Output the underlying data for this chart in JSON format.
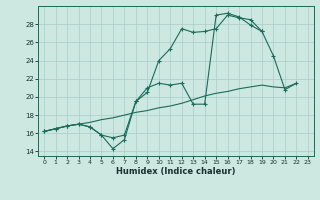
{
  "xlabel": "Humidex (Indice chaleur)",
  "bg_color": "#cce8e0",
  "grid_color": "#aacccc",
  "line_color": "#1a6b5a",
  "xlim": [
    -0.5,
    23.5
  ],
  "ylim": [
    13.5,
    30.0
  ],
  "xticks": [
    0,
    1,
    2,
    3,
    4,
    5,
    6,
    7,
    8,
    9,
    10,
    11,
    12,
    13,
    14,
    15,
    16,
    17,
    18,
    19,
    20,
    21,
    22,
    23
  ],
  "yticks": [
    14,
    16,
    18,
    20,
    22,
    24,
    26,
    28
  ],
  "series1_x": [
    0,
    1,
    2,
    3,
    4,
    5,
    6,
    7,
    8,
    9,
    10,
    11,
    12,
    13,
    14,
    15,
    16,
    17,
    18,
    19,
    20,
    21,
    22,
    23
  ],
  "series1_y": [
    16.2,
    16.5,
    16.8,
    17.0,
    16.7,
    15.8,
    14.3,
    15.3,
    19.5,
    21.0,
    21.5,
    21.3,
    21.5,
    19.2,
    19.2,
    29.0,
    29.2,
    28.8,
    27.9,
    27.2,
    24.5,
    20.8,
    21.5,
    null
  ],
  "series2_x": [
    0,
    1,
    2,
    3,
    4,
    5,
    6,
    7,
    8,
    9,
    10,
    11,
    12,
    13,
    14,
    15,
    16,
    17,
    18,
    19,
    20,
    21,
    22,
    23
  ],
  "series2_y": [
    16.2,
    16.5,
    16.8,
    17.0,
    16.7,
    15.8,
    15.5,
    15.8,
    19.5,
    20.5,
    24.0,
    25.3,
    27.5,
    27.1,
    27.2,
    27.5,
    29.0,
    28.7,
    28.5,
    27.2,
    null,
    null,
    null,
    null
  ],
  "series3_x": [
    0,
    1,
    2,
    3,
    4,
    5,
    6,
    7,
    8,
    9,
    10,
    11,
    12,
    13,
    14,
    15,
    16,
    17,
    18,
    19,
    20,
    21,
    22,
    23
  ],
  "series3_y": [
    16.2,
    16.5,
    16.8,
    17.0,
    17.2,
    17.5,
    17.7,
    18.0,
    18.3,
    18.5,
    18.8,
    19.0,
    19.3,
    19.7,
    20.1,
    20.4,
    20.6,
    20.9,
    21.1,
    21.3,
    21.1,
    21.0,
    21.5,
    null
  ]
}
